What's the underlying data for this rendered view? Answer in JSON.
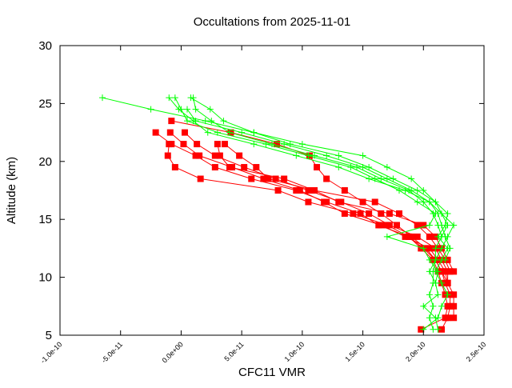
{
  "chart_data": {
    "type": "line",
    "title": "Occultations from 2025-11-01",
    "xlabel": "CFC11 VMR",
    "ylabel": "Altitude (km)",
    "xlim": [
      -1e-10,
      2.5e-10
    ],
    "ylim": [
      5,
      30
    ],
    "x_ticks": [
      "-1.0e-10",
      "-5.0e-11",
      "0.0e+00",
      "5.0e-11",
      "1.0e-10",
      "1.5e-10",
      "2.0e-10",
      "2.5e-10"
    ],
    "x_tick_values": [
      -1e-10,
      -5e-11,
      0,
      5e-11,
      1e-10,
      1.5e-10,
      2e-10,
      2.5e-10
    ],
    "y_ticks": [
      "5",
      "10",
      "15",
      "20",
      "25",
      "30"
    ],
    "y_tick_values": [
      5,
      10,
      15,
      20,
      25,
      30
    ],
    "grid": false,
    "legend": "none",
    "series": [
      {
        "color": "#ff0000",
        "marker": "square",
        "profiles": [
          [
            [
              -8e-12,
              23.5
            ],
            [
              4.1e-11,
              22.5
            ],
            [
              7.9e-11,
              21.5
            ],
            [
              1.06e-10,
              20.5
            ],
            [
              1.12e-10,
              19.5
            ],
            [
              1.2e-10,
              18.5
            ],
            [
              1.35e-10,
              17.5
            ],
            [
              1.5e-10,
              16.5
            ],
            [
              1.65e-10,
              15.5
            ],
            [
              1.78e-10,
              14.5
            ],
            [
              1.9e-10,
              13.5
            ],
            [
              2.02e-10,
              12.5
            ],
            [
              2.1e-10,
              11.5
            ],
            [
              2.15e-10,
              10.5
            ],
            [
              2.18e-10,
              9.5
            ],
            [
              2.22e-10,
              8.5
            ],
            [
              2.22e-10,
              7.5
            ],
            [
              2.2e-10,
              6.5
            ],
            [
              2.15e-10,
              5.5
            ]
          ],
          [
            [
              -2.1e-11,
              22.5
            ],
            [
              -8e-12,
              21.5
            ],
            [
              1.2e-11,
              20.5
            ],
            [
              2.8e-11,
              19.5
            ],
            [
              5.8e-11,
              18.5
            ],
            [
              9.5e-11,
              17.5
            ],
            [
              1.2e-10,
              16.5
            ],
            [
              1.48e-10,
              15.5
            ],
            [
              1.63e-10,
              14.5
            ],
            [
              1.88e-10,
              13.5
            ],
            [
              1.98e-10,
              12.5
            ],
            [
              2.08e-10,
              11.5
            ],
            [
              2.12e-10,
              10.5
            ],
            [
              2.15e-10,
              9.5
            ],
            [
              2.18e-10,
              8.5
            ],
            [
              2.2e-10,
              7.5
            ],
            [
              2.18e-10,
              6.5
            ],
            [
              1.98e-10,
              5.5
            ]
          ],
          [
            [
              -9e-12,
              22.5
            ],
            [
              2e-12,
              21.5
            ],
            [
              1.5e-11,
              20.5
            ],
            [
              4.2e-11,
              19.5
            ],
            [
              6.8e-11,
              18.5
            ],
            [
              9.8e-11,
              17.5
            ],
            [
              1.18e-10,
              16.5
            ],
            [
              1.35e-10,
              15.5
            ],
            [
              1.65e-10,
              14.5
            ],
            [
              1.85e-10,
              13.5
            ],
            [
              2.05e-10,
              12.5
            ],
            [
              2.12e-10,
              11.5
            ],
            [
              2.18e-10,
              10.5
            ],
            [
              2.2e-10,
              9.5
            ],
            [
              2.25e-10,
              8.5
            ],
            [
              2.25e-10,
              7.5
            ],
            [
              2.25e-10,
              6.5
            ]
          ],
          [
            [
              3e-12,
              22.5
            ],
            [
              1.3e-11,
              21.5
            ],
            [
              2.8e-11,
              20.5
            ],
            [
              5.2e-11,
              19.5
            ],
            [
              7.8e-11,
              18.5
            ],
            [
              1.05e-10,
              17.5
            ],
            [
              1.32e-10,
              16.5
            ],
            [
              1.55e-10,
              15.5
            ],
            [
              1.72e-10,
              14.5
            ],
            [
              1.95e-10,
              13.5
            ],
            [
              2.1e-10,
              12.5
            ],
            [
              2.15e-10,
              11.5
            ],
            [
              2.2e-10,
              10.5
            ],
            [
              2.2e-10,
              9.5
            ]
          ],
          [
            [
              -1e-11,
              21.5
            ],
            [
              -1.1e-11,
              20.5
            ],
            [
              -5e-12,
              19.5
            ],
            [
              1.6e-11,
              18.5
            ],
            [
              8e-11,
              17.5
            ],
            [
              1.05e-10,
              16.5
            ],
            [
              1.42e-10,
              15.5
            ],
            [
              1.7e-10,
              14.5
            ],
            [
              1.88e-10,
              13.5
            ],
            [
              2e-10,
              12.5
            ],
            [
              2.1e-10,
              11.5
            ],
            [
              2.15e-10,
              10.5
            ],
            [
              2.2e-10,
              9.5
            ]
          ],
          [
            [
              3.6e-11,
              21.5
            ],
            [
              4.8e-11,
              20.5
            ],
            [
              6.2e-11,
              19.5
            ],
            [
              7.2e-11,
              18.5
            ],
            [
              1.1e-10,
              17.5
            ],
            [
              1.3e-10,
              16.5
            ],
            [
              1.72e-10,
              15.5
            ],
            [
              2e-10,
              14.5
            ],
            [
              2.1e-10,
              13.5
            ],
            [
              2.15e-10,
              12.5
            ],
            [
              2.2e-10,
              11.5
            ],
            [
              2.25e-10,
              10.5
            ]
          ],
          [
            [
              3e-11,
              21.5
            ],
            [
              3.2e-11,
              20.5
            ],
            [
              4e-11,
              19.5
            ],
            [
              8.5e-11,
              18.5
            ],
            [
              1.1e-10,
              17.5
            ],
            [
              1.6e-10,
              16.5
            ],
            [
              1.8e-10,
              15.5
            ],
            [
              1.95e-10,
              14.5
            ],
            [
              2.05e-10,
              13.5
            ],
            [
              2.12e-10,
              12.5
            ],
            [
              2.18e-10,
              11.5
            ],
            [
              2.22e-10,
              10.5
            ]
          ]
        ]
      },
      {
        "color": "#00ff00",
        "marker": "plus",
        "profiles": [
          [
            [
              -6.5e-11,
              25.5
            ],
            [
              -2.5e-11,
              24.5
            ],
            [
              2e-11,
              23.5
            ],
            [
              6e-11,
              22.5
            ],
            [
              1e-10,
              21.5
            ],
            [
              1.5e-10,
              20.5
            ],
            [
              1.7e-10,
              19.5
            ],
            [
              1.9e-10,
              18.5
            ],
            [
              2e-10,
              17.5
            ],
            [
              2.1e-10,
              16.5
            ],
            [
              2.15e-10,
              15.5
            ],
            [
              2.2e-10,
              14.5
            ],
            [
              2.15e-10,
              13.5
            ],
            [
              2.1e-10,
              12.5
            ],
            [
              2.1e-10,
              11.5
            ],
            [
              2.08e-10,
              10.5
            ],
            [
              2.08e-10,
              9.5
            ],
            [
              2.05e-10,
              8.5
            ],
            [
              2.08e-10,
              7.5
            ],
            [
              2.05e-10,
              6.5
            ],
            [
              2.08e-10,
              5.5
            ]
          ],
          [
            [
              -1e-11,
              25.5
            ],
            [
              -2e-12,
              24.5
            ],
            [
              1e-11,
              23.5
            ],
            [
              2.2e-11,
              22.5
            ],
            [
              6e-11,
              21.5
            ],
            [
              9.5e-11,
              20.5
            ],
            [
              1.3e-10,
              19.5
            ],
            [
              1.55e-10,
              18.5
            ],
            [
              1.85e-10,
              17.5
            ],
            [
              2.05e-10,
              16.5
            ],
            [
              2.15e-10,
              15.5
            ],
            [
              2.25e-10,
              14.5
            ],
            [
              2.2e-10,
              13.5
            ],
            [
              2.15e-10,
              12.5
            ],
            [
              2.1e-10,
              11.5
            ],
            [
              2.05e-10,
              10.5
            ],
            [
              2.1e-10,
              9.5
            ],
            [
              2.12e-10,
              8.5
            ],
            [
              2e-10,
              7.5
            ],
            [
              2.1e-10,
              6.5
            ],
            [
              2.12e-10,
              5.5
            ]
          ],
          [
            [
              8e-12,
              25.5
            ],
            [
              2.4e-11,
              24.5
            ],
            [
              3.5e-11,
              23.5
            ],
            [
              6e-11,
              22.5
            ],
            [
              9e-11,
              21.5
            ],
            [
              1.3e-10,
              20.5
            ],
            [
              1.55e-10,
              19.5
            ],
            [
              1.75e-10,
              18.5
            ],
            [
              1.95e-10,
              17.5
            ],
            [
              2.1e-10,
              16.5
            ],
            [
              2.2e-10,
              15.5
            ],
            [
              2.18e-10,
              14.5
            ],
            [
              2.12e-10,
              13.5
            ],
            [
              2.2e-10,
              12.5
            ],
            [
              2.15e-10,
              11.5
            ],
            [
              2.1e-10,
              10.5
            ],
            [
              2.15e-10,
              9.5
            ],
            [
              2.2e-10,
              8.5
            ],
            [
              2.15e-10,
              7.5
            ],
            [
              2.12e-10,
              6.5
            ],
            [
              2e-10,
              5.5
            ]
          ],
          [
            [
              -5e-12,
              25.5
            ],
            [
              0.0,
              24.5
            ],
            [
              5e-12,
              23.5
            ],
            [
              3e-11,
              22.5
            ],
            [
              7e-11,
              21.5
            ],
            [
              1.05e-10,
              20.5
            ],
            [
              1.4e-10,
              19.5
            ],
            [
              1.6e-10,
              18.5
            ],
            [
              1.8e-10,
              17.5
            ],
            [
              1.95e-10,
              16.5
            ],
            [
              2.1e-10,
              15.5
            ],
            [
              2.05e-10,
              14.5
            ],
            [
              1.7e-10,
              13.5
            ],
            [
              2e-10,
              12.5
            ],
            [
              2.05e-10,
              11.5
            ],
            [
              2.12e-10,
              10.5
            ],
            [
              2.1e-10,
              9.5
            ]
          ],
          [
            [
              5e-12,
              24.5
            ],
            [
              1.2e-11,
              23.5
            ],
            [
              5e-11,
              22.5
            ],
            [
              8.5e-11,
              21.5
            ],
            [
              1.2e-10,
              20.5
            ],
            [
              1.5e-10,
              19.5
            ],
            [
              1.7e-10,
              18.5
            ],
            [
              1.9e-10,
              17.5
            ],
            [
              2.05e-10,
              16.5
            ],
            [
              2.12e-10,
              15.5
            ],
            [
              2.15e-10,
              14.5
            ],
            [
              2.18e-10,
              13.5
            ],
            [
              2.22e-10,
              12.5
            ],
            [
              2.18e-10,
              11.5
            ]
          ],
          [
            [
              1e-11,
              25.5
            ],
            [
              1.2e-11,
              24.5
            ],
            [
              2.5e-11,
              23.5
            ],
            [
              4e-11,
              22.5
            ],
            [
              7.5e-11,
              21.5
            ],
            [
              1.1e-10,
              20.5
            ],
            [
              1.45e-10,
              19.5
            ],
            [
              1.65e-10,
              18.5
            ],
            [
              1.88e-10,
              17.5
            ],
            [
              2e-10,
              16.5
            ],
            [
              2.08e-10,
              15.5
            ],
            [
              2.12e-10,
              14.5
            ],
            [
              2.15e-10,
              13.5
            ]
          ]
        ]
      }
    ]
  }
}
